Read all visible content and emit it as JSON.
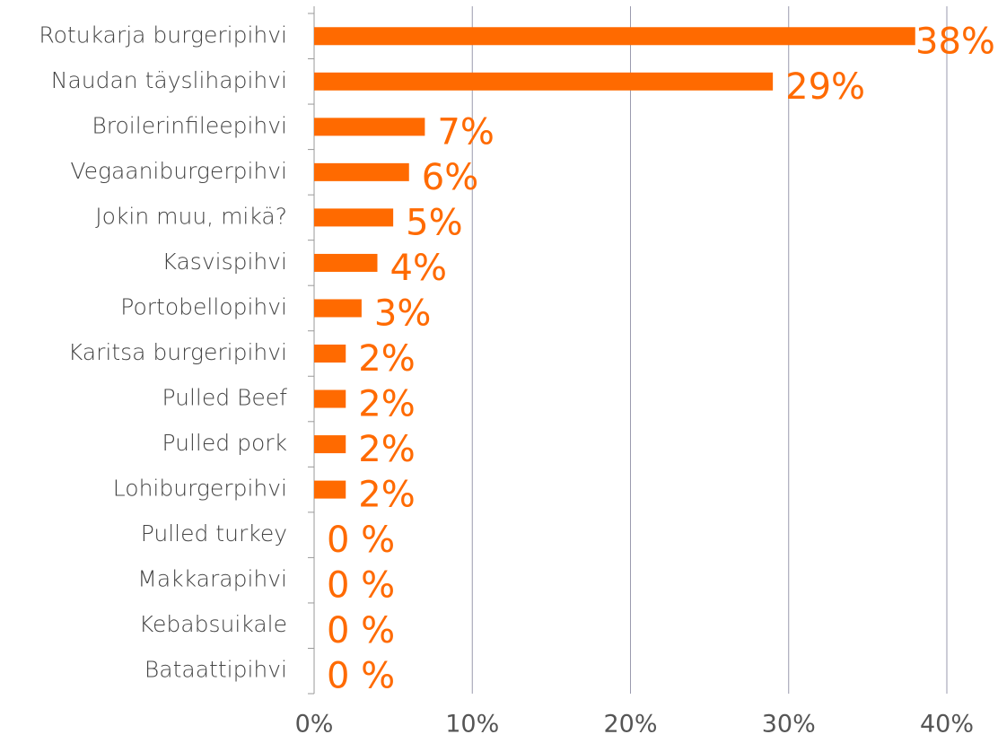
{
  "chart_data": {
    "type": "bar",
    "orientation": "horizontal",
    "color": "#ff6a00",
    "grid": true,
    "categories": [
      "Rotukarja burgeripihvi",
      "Naudan täyslihapihvi",
      "Broilerinfileepihvi",
      "Vegaaniburgerpihvi",
      "Jokin muu, mikä?",
      "Kasvispihvi",
      "Portobellopihvi",
      "Karitsa burgeripihvi",
      "Pulled Beef",
      "Pulled pork",
      "Lohiburgerpihvi",
      "Pulled turkey",
      "Makkarapihvi",
      "Kebabsuikale",
      "Bataattipihvi"
    ],
    "values": [
      38,
      29,
      7,
      6,
      5,
      4,
      3,
      2,
      2,
      2,
      2,
      0,
      0,
      0,
      0
    ],
    "value_labels": [
      "38%",
      "29%",
      "7%",
      "6%",
      "5%",
      "4%",
      "3%",
      "2%",
      "2%",
      "2%",
      "2%",
      "0 %",
      "0 %",
      "0 %",
      "0 %"
    ],
    "xlim": [
      0,
      40
    ],
    "xticks": [
      {
        "value": 0,
        "label": "0%"
      },
      {
        "value": 10,
        "label": "10%"
      },
      {
        "value": 20,
        "label": "20%"
      },
      {
        "value": 30,
        "label": "30%"
      },
      {
        "value": 40,
        "label": "40%"
      }
    ]
  }
}
